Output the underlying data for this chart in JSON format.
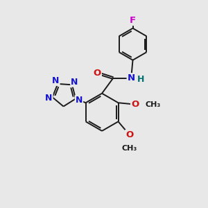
{
  "background_color": "#e8e8e8",
  "bond_color": "#1a1a1a",
  "bond_width": 1.4,
  "atom_colors": {
    "C": "#1a1a1a",
    "N": "#1414cc",
    "O": "#cc1414",
    "F": "#cc00cc",
    "H": "#007070"
  },
  "figsize": [
    3.0,
    3.0
  ],
  "dpi": 100,
  "xlim": [
    0,
    10
  ],
  "ylim": [
    0,
    10
  ],
  "font_size": 9.5
}
